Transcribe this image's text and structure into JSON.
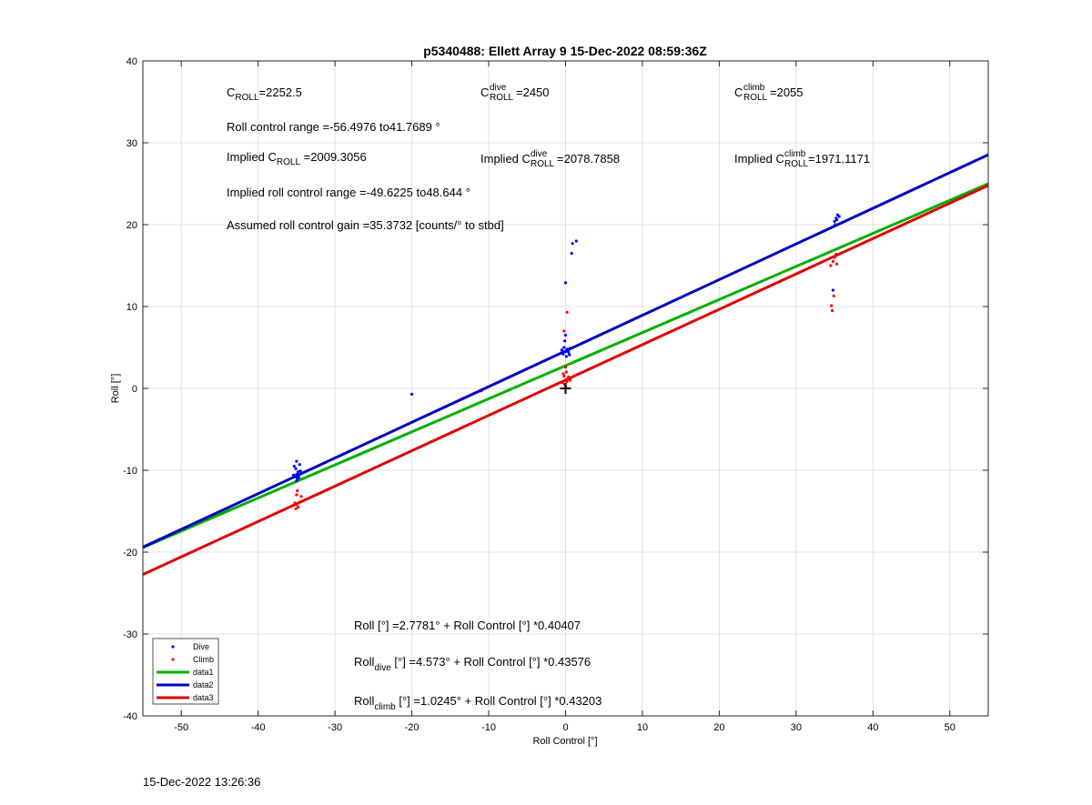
{
  "chart_data": {
    "type": "scatter",
    "title": "p5340488: Ellett Array 9 15-Dec-2022 08:59:36Z",
    "xlabel": "Roll Control [°]",
    "ylabel": "Roll [°]",
    "xlim": [
      -55,
      55
    ],
    "ylim": [
      -40,
      40
    ],
    "xticks": [
      -50,
      -40,
      -30,
      -20,
      -10,
      0,
      10,
      20,
      30,
      40,
      50
    ],
    "yticks": [
      -40,
      -30,
      -20,
      -10,
      0,
      10,
      20,
      30,
      40
    ],
    "grid": true,
    "legend_position": "bottom-left",
    "legend": [
      {
        "label": "Dive",
        "kind": "marker",
        "color": "#0000ff"
      },
      {
        "label": "Climb",
        "kind": "marker",
        "color": "#ff0000"
      },
      {
        "label": "data1",
        "kind": "line",
        "color": "#00b000"
      },
      {
        "label": "data2",
        "kind": "line",
        "color": "#0000c0"
      },
      {
        "label": "data3",
        "kind": "line",
        "color": "#e00000"
      }
    ],
    "series": [
      {
        "name": "Dive",
        "kind": "scatter",
        "color": "#0000ff",
        "points": [
          [
            -35,
            -10.5
          ],
          [
            -35.2,
            -10.8
          ],
          [
            -34.8,
            -10.2
          ],
          [
            -35.1,
            -9.8
          ],
          [
            -34.9,
            -11
          ],
          [
            -35.3,
            -9.5
          ],
          [
            -35,
            -8.9
          ],
          [
            -34.6,
            -9.3
          ],
          [
            -35.4,
            -10.6
          ],
          [
            -34.7,
            -10.9
          ],
          [
            -35,
            -11.3
          ],
          [
            -34.5,
            -10.1
          ],
          [
            -20,
            -0.7
          ],
          [
            -11,
            -0.3
          ],
          [
            0,
            4.5
          ],
          [
            -0.3,
            4.2
          ],
          [
            0.2,
            4.8
          ],
          [
            0.4,
            4.4
          ],
          [
            -0.2,
            5.0
          ],
          [
            0.1,
            3.9
          ],
          [
            0.3,
            4.6
          ],
          [
            -0.4,
            4.3
          ],
          [
            0.5,
            4.1
          ],
          [
            -0.1,
            5.8
          ],
          [
            0,
            6.5
          ],
          [
            0,
            12.9
          ],
          [
            0.8,
            16.5
          ],
          [
            0.9,
            17.7
          ],
          [
            1.4,
            18.0
          ],
          [
            0.6,
            4.9
          ],
          [
            -0.5,
            4.7
          ],
          [
            35,
            20.4
          ],
          [
            35.2,
            20.8
          ],
          [
            35.4,
            21.2
          ],
          [
            35.6,
            21.0
          ],
          [
            35.1,
            20.0
          ],
          [
            35.3,
            20.6
          ],
          [
            34.8,
            12.0
          ]
        ]
      },
      {
        "name": "Climb",
        "kind": "scatter",
        "color": "#ff0000",
        "points": [
          [
            -35,
            -14.2
          ],
          [
            -34.8,
            -14.5
          ],
          [
            -35.2,
            -14.0
          ],
          [
            -34.6,
            -13.9
          ],
          [
            -35,
            -13.0
          ],
          [
            -34.4,
            -13.2
          ],
          [
            -35.1,
            -14.7
          ],
          [
            -34.9,
            -12.5
          ],
          [
            0,
            1.0
          ],
          [
            -0.2,
            1.5
          ],
          [
            0.2,
            0.8
          ],
          [
            0.1,
            2.0
          ],
          [
            -0.1,
            0.5
          ],
          [
            0.3,
            1.2
          ],
          [
            0,
            0.2
          ],
          [
            -0.3,
            1.8
          ],
          [
            0.4,
            1.4
          ],
          [
            0,
            2.6
          ],
          [
            -0.2,
            7.0
          ],
          [
            0.2,
            9.3
          ],
          [
            0.6,
            1.0
          ],
          [
            -0.4,
            0.7
          ],
          [
            34.5,
            15.0
          ],
          [
            34.8,
            15.5
          ],
          [
            35,
            16.0
          ],
          [
            35.2,
            16.4
          ],
          [
            34.9,
            11.3
          ],
          [
            34.6,
            10.1
          ],
          [
            34.7,
            9.5
          ],
          [
            35.3,
            15.2
          ]
        ]
      },
      {
        "name": "data1",
        "kind": "line",
        "color": "#00b000",
        "x": [
          -55,
          55
        ],
        "y": [
          -19.445,
          24.999
        ]
      },
      {
        "name": "data2",
        "kind": "line",
        "color": "#0000c0",
        "x": [
          -55,
          55
        ],
        "y": [
          -19.394,
          28.54
        ]
      },
      {
        "name": "data3",
        "kind": "line",
        "color": "#e00000",
        "x": [
          -55,
          55
        ],
        "y": [
          -22.737,
          24.786
        ]
      }
    ],
    "marker_point": [
      0,
      0
    ]
  },
  "annotations": {
    "croll": {
      "base": "C",
      "sub": "ROLL",
      "value": "=2252.5"
    },
    "croll_dive": {
      "base": "C",
      "sup": "dive",
      "sub": "ROLL",
      "value": "=2450"
    },
    "croll_climb": {
      "base": "C",
      "sup": "climb",
      "sub": "ROLL",
      "value": "=2055"
    },
    "roll_range": "Roll control range =-56.4976 to41.7689 °",
    "implied_croll": {
      "prefix": "Implied C",
      "sub": "ROLL",
      "value": " =2009.3056"
    },
    "implied_croll_dive": {
      "prefix": "Implied C",
      "sup": "dive",
      "sub": "ROLL",
      "value": "=2078.7858"
    },
    "implied_croll_climb": {
      "prefix": "Implied C",
      "sup": "climb",
      "sub": "ROLL",
      "value": " =1971.1171"
    },
    "implied_range": "Implied roll control range =-49.6225 to48.644 °",
    "gain": "Assumed roll control gain =35.3732 [counts/° to stbd]",
    "eq_all": "Roll [°] =2.7781° + Roll Control [°] *0.40407",
    "eq_dive": {
      "prefix": "Roll",
      "sub": "dive",
      "value": " [°] =4.573° + Roll Control [°] *0.43576"
    },
    "eq_climb": {
      "prefix": "Roll",
      "sub": "climb",
      "value": " [°] =1.0245° + Roll Control [°] *0.43203"
    }
  },
  "footer_timestamp": "15-Dec-2022 13:26:36"
}
